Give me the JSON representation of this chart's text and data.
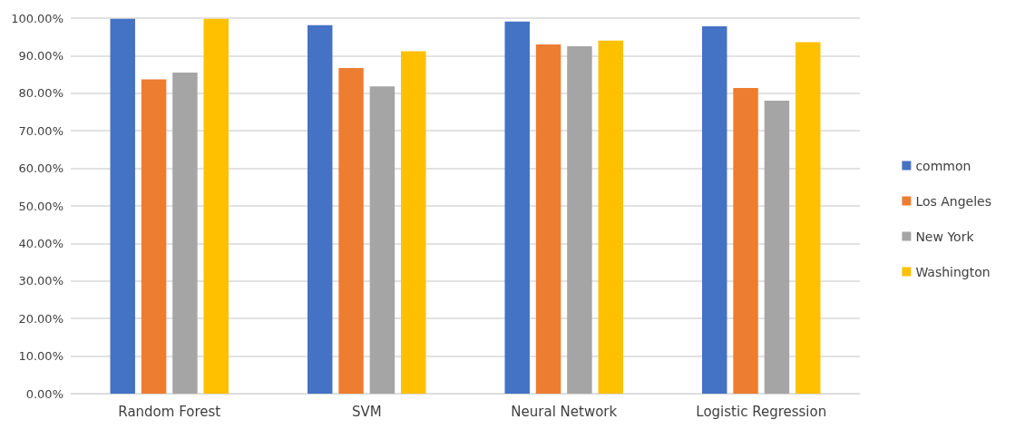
{
  "chart_data": {
    "type": "bar",
    "categories": [
      "Random Forest",
      "SVM",
      "Neural Network",
      "Logistic Regression"
    ],
    "series": [
      {
        "name": "common",
        "color": "#4472c4",
        "values": [
          99.8,
          98.1,
          99.1,
          97.8
        ]
      },
      {
        "name": "Los Angeles",
        "color": "#ed7d31",
        "values": [
          83.7,
          86.7,
          93.0,
          81.4
        ]
      },
      {
        "name": "New York",
        "color": "#a5a5a5",
        "values": [
          85.5,
          81.8,
          92.5,
          78.0
        ]
      },
      {
        "name": "Washington",
        "color": "#ffc000",
        "values": [
          99.8,
          91.2,
          94.0,
          93.6
        ]
      }
    ],
    "ylim": [
      0,
      100
    ],
    "yticks": [
      {
        "value": 0,
        "label": "0.00%"
      },
      {
        "value": 10,
        "label": "10.00%"
      },
      {
        "value": 20,
        "label": "20.00%"
      },
      {
        "value": 30,
        "label": "30.00%"
      },
      {
        "value": 40,
        "label": "40.00%"
      },
      {
        "value": 50,
        "label": "50.00%"
      },
      {
        "value": 60,
        "label": "60.00%"
      },
      {
        "value": 70,
        "label": "70.00%"
      },
      {
        "value": 80,
        "label": "80.00%"
      },
      {
        "value": 90,
        "label": "90.00%"
      },
      {
        "value": 100,
        "label": "100.00%"
      }
    ],
    "grid": "y",
    "legend": "right"
  }
}
